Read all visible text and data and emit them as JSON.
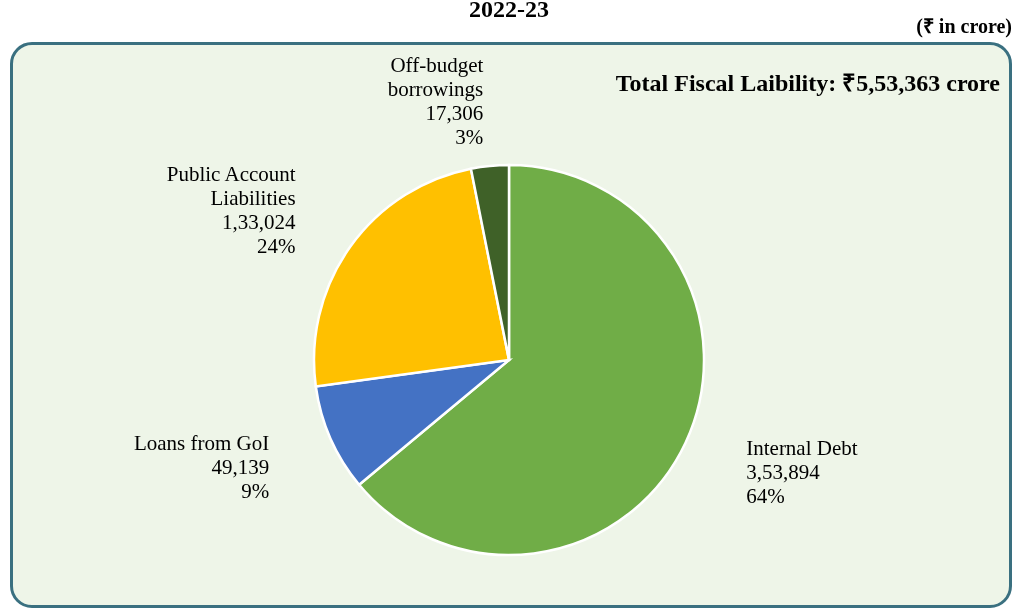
{
  "chart_data": {
    "type": "pie",
    "title": "2022-23",
    "categories": [
      "Internal Debt",
      "Loans from GoI",
      "Public Account Liabilities",
      "Off-budget borrowings"
    ],
    "values": [
      353894,
      49139,
      133024,
      17306
    ],
    "value_labels": [
      "3,53,894\n64%",
      "49,139\n9%",
      "1,33,024\n24%",
      "17,306\n3%"
    ],
    "colors": [
      "#70ad47",
      "#4472c4",
      "#ffc000",
      "#3f6128"
    ],
    "annotations": [
      "(₹ in crore)",
      "Total Fiscal Laibility: ₹5,53,363 crore"
    ],
    "legend": false
  }
}
